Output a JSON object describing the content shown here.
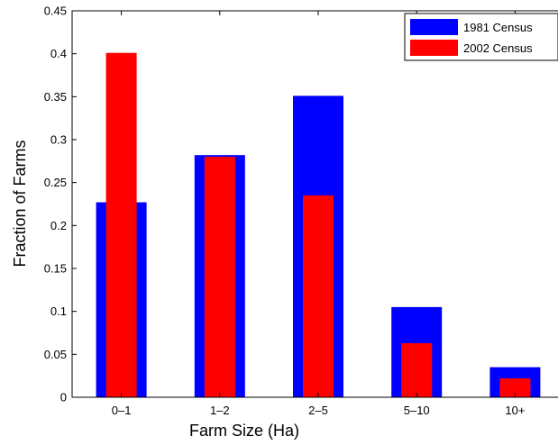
{
  "chart_data": {
    "type": "bar",
    "categories": [
      "0–1",
      "1–2",
      "2–5",
      "5–10",
      "10+"
    ],
    "series": [
      {
        "name": "1981 Census",
        "color": "#0000ff",
        "values": [
          0.227,
          0.282,
          0.351,
          0.105,
          0.035
        ]
      },
      {
        "name": "2002 Census",
        "color": "#ff0000",
        "values": [
          0.401,
          0.28,
          0.235,
          0.063,
          0.022
        ]
      }
    ],
    "xlabel": "Farm Size (Ha)",
    "ylabel": "Fraction of Farms",
    "ylim": [
      0,
      0.45
    ],
    "yticks": [
      0,
      0.05,
      0.1,
      0.15,
      0.2,
      0.25,
      0.3,
      0.35,
      0.4,
      0.45
    ],
    "ytick_labels": [
      "0",
      "0.05",
      "0.1",
      "0.15",
      "0.2",
      "0.25",
      "0.3",
      "0.35",
      "0.4",
      "0.45"
    ],
    "grid": false,
    "legend_position": "top-right",
    "bar_style": "overlaid"
  }
}
